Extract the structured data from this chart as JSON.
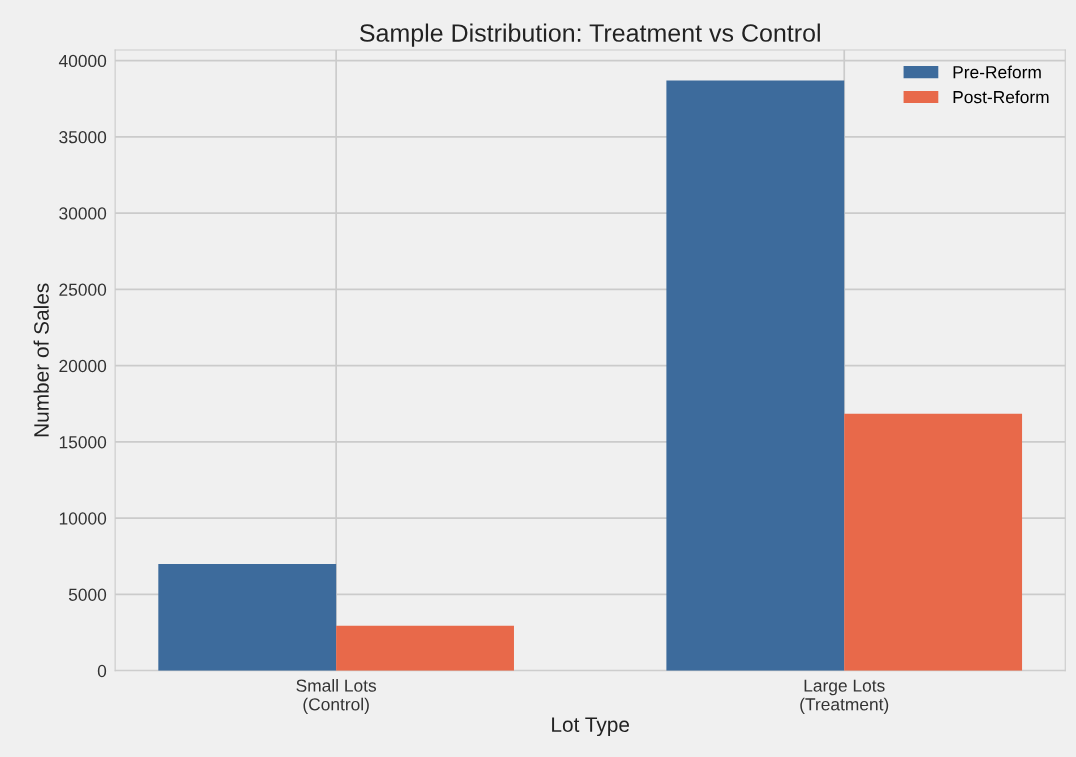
{
  "chart_data": {
    "type": "bar",
    "title": "Sample Distribution: Treatment vs Control",
    "xlabel": "Lot Type",
    "ylabel": "Number of Sales",
    "categories": [
      "Small Lots\n(Control)",
      "Large Lots\n(Treatment)"
    ],
    "series": [
      {
        "name": "Pre-Reform",
        "color": "#3d6b9c",
        "values": [
          7000,
          38700
        ]
      },
      {
        "name": "Post-Reform",
        "color": "#e8694a",
        "values": [
          2950,
          16850
        ]
      }
    ],
    "ylim": [
      0,
      40700
    ],
    "yticks": [
      0,
      5000,
      10000,
      15000,
      20000,
      25000,
      30000,
      35000,
      40000
    ],
    "grid": true,
    "legend": "top right"
  }
}
